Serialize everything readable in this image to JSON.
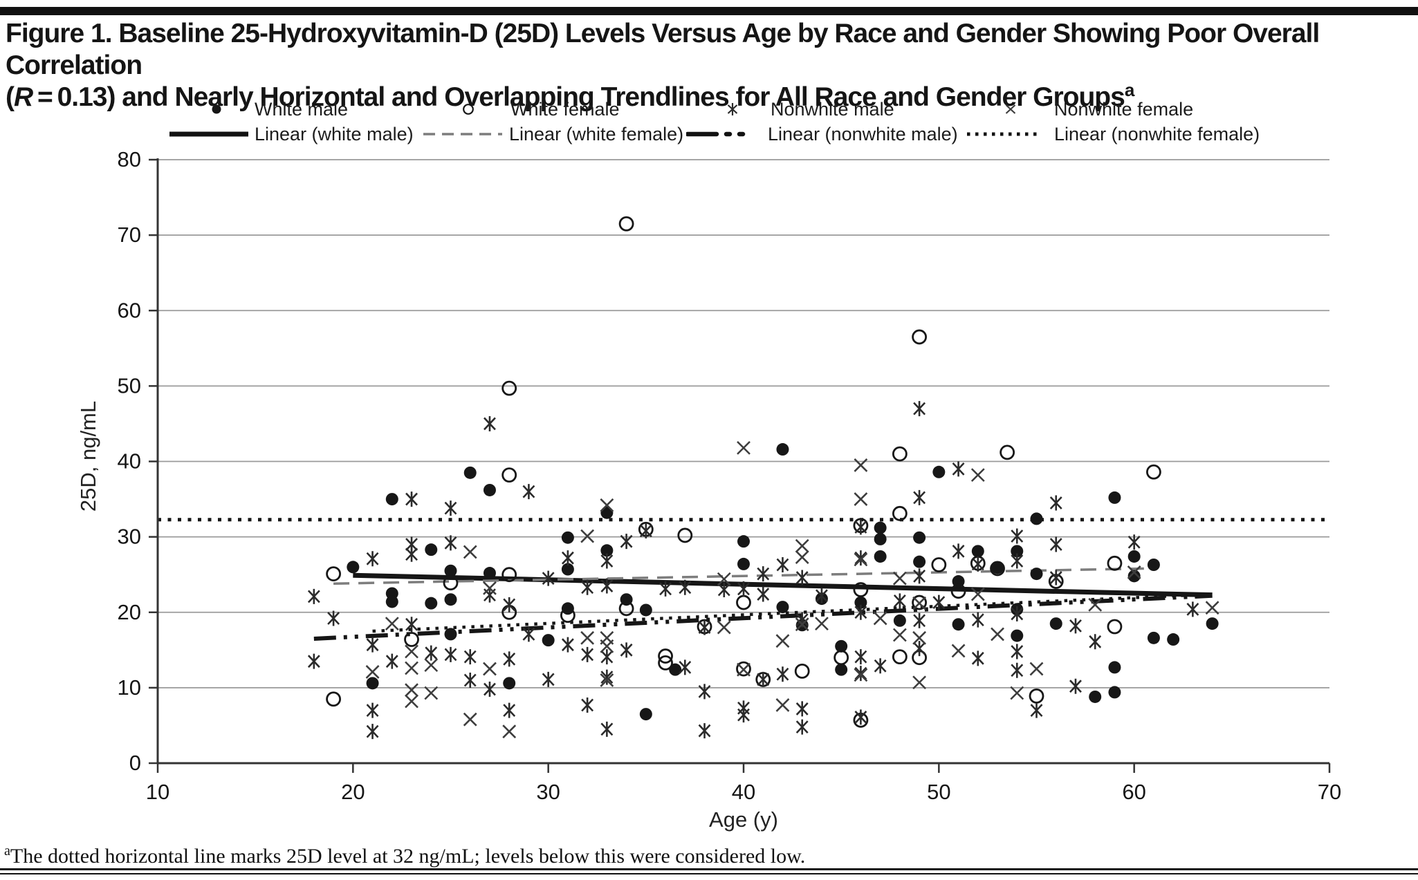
{
  "figure": {
    "title_line1": "Figure 1. Baseline 25-Hydroxyvitamin-D (25D) Levels Versus Age by Race and Gender Showing Poor Overall Correlation",
    "title_line2_pre": "(",
    "title_line2_r": "R",
    "title_line2_rest": " = 0.13) and Nearly Horizontal and Overlapping Trendlines for All Race and Gender Groups",
    "title_superscript": "a",
    "footnote_superscript": "a",
    "footnote_text": "The dotted horizontal line marks 25D level at 32 ng/mL; levels below this were considered low."
  },
  "legend": {
    "row1": [
      {
        "label": "White male"
      },
      {
        "label": "White female"
      },
      {
        "label": "Nonwhite male"
      },
      {
        "label": "Nonwhite female"
      }
    ],
    "row2": [
      {
        "label": "Linear (white male)"
      },
      {
        "label": "Linear (white female)"
      },
      {
        "label": "Linear (nonwhite male)"
      },
      {
        "label": "Linear (nonwhite female)"
      }
    ]
  },
  "colors": {
    "ink": "#161616",
    "grid": "#9a9a9a",
    "dashed_trend": "#7d7d7d",
    "x_marker": "#3d3d3d"
  },
  "chart_data": {
    "type": "scatter",
    "title": "Baseline 25D levels versus age by race and gender",
    "xlabel": "Age (y)",
    "ylabel": "25D, ng/mL",
    "xlim": [
      10,
      70
    ],
    "ylim": [
      0,
      80
    ],
    "xticks": [
      10,
      20,
      30,
      40,
      50,
      60,
      70
    ],
    "yticks": [
      0,
      10,
      20,
      30,
      40,
      50,
      60,
      70,
      80
    ],
    "grid": "horizontal",
    "legend_position": "top",
    "correlation_R": 0.13,
    "reference_line": {
      "y": 32,
      "style": "dotted",
      "meaning": "25D level 32 ng/mL; levels below considered low"
    },
    "series": [
      {
        "name": "White male",
        "marker": "filled-circle",
        "points": [
          [
            20,
            26
          ],
          [
            21,
            10.6
          ],
          [
            22,
            35
          ],
          [
            22,
            22.5
          ],
          [
            22,
            21.4
          ],
          [
            24,
            28.3
          ],
          [
            24,
            21.2
          ],
          [
            25,
            25.5
          ],
          [
            25,
            21.7
          ],
          [
            25,
            17.1
          ],
          [
            26,
            38.5
          ],
          [
            27,
            36.2
          ],
          [
            27,
            25.2
          ],
          [
            28,
            10.6
          ],
          [
            30,
            16.3
          ],
          [
            31,
            29.9
          ],
          [
            31,
            25.7
          ],
          [
            31,
            20.5
          ],
          [
            33,
            33.2
          ],
          [
            33,
            28.2
          ],
          [
            34,
            21.7
          ],
          [
            35,
            20.3
          ],
          [
            35,
            6.5
          ],
          [
            36.5,
            12.4
          ],
          [
            40,
            29.4
          ],
          [
            40,
            26.4
          ],
          [
            42,
            41.6
          ],
          [
            42,
            20.7
          ],
          [
            43,
            18.3
          ],
          [
            44,
            21.8
          ],
          [
            45,
            15.5
          ],
          [
            45,
            12.4
          ],
          [
            46,
            21.3
          ],
          [
            47,
            31.2
          ],
          [
            47,
            29.7
          ],
          [
            47,
            27.4
          ],
          [
            48,
            18.9
          ],
          [
            49,
            29.9
          ],
          [
            49,
            26.7
          ],
          [
            50,
            38.6
          ],
          [
            51,
            24.1
          ],
          [
            51,
            18.4
          ],
          [
            52,
            28.1
          ],
          [
            53,
            25.9
          ],
          [
            54,
            28.1
          ],
          [
            54,
            20.4
          ],
          [
            54,
            16.9
          ],
          [
            55,
            32.4
          ],
          [
            55,
            25.1
          ],
          [
            56,
            18.5
          ],
          [
            58,
            8.8
          ],
          [
            59,
            35.2
          ],
          [
            59,
            12.7
          ],
          [
            59,
            9.4
          ],
          [
            60,
            27.4
          ],
          [
            60,
            24.8
          ],
          [
            61,
            26.3
          ],
          [
            61,
            16.6
          ],
          [
            62,
            16.4
          ],
          [
            64,
            18.5
          ]
        ]
      },
      {
        "name": "White female",
        "marker": "open-circle",
        "points": [
          [
            19,
            25.1
          ],
          [
            19,
            8.5
          ],
          [
            23,
            16.4
          ],
          [
            25,
            23.9
          ],
          [
            28,
            49.7
          ],
          [
            28,
            38.2
          ],
          [
            28,
            25
          ],
          [
            28,
            20
          ],
          [
            31,
            19.6
          ],
          [
            34,
            71.5
          ],
          [
            34,
            20.5
          ],
          [
            35,
            31
          ],
          [
            36,
            14.2
          ],
          [
            36,
            13.3
          ],
          [
            37,
            30.2
          ],
          [
            38,
            18.1
          ],
          [
            40,
            21.3
          ],
          [
            40,
            12.5
          ],
          [
            41,
            11.1
          ],
          [
            43,
            12.2
          ],
          [
            45,
            14
          ],
          [
            46,
            31.5
          ],
          [
            46,
            23
          ],
          [
            46,
            5.7
          ],
          [
            48,
            41
          ],
          [
            48,
            33.1
          ],
          [
            48,
            14.1
          ],
          [
            49,
            56.5
          ],
          [
            49,
            21.3
          ],
          [
            49,
            14
          ],
          [
            50,
            26.3
          ],
          [
            51,
            22.8
          ],
          [
            52,
            26.5
          ],
          [
            53.5,
            41.2
          ],
          [
            53,
            25.8
          ],
          [
            55,
            8.9
          ],
          [
            56,
            24.1
          ],
          [
            59,
            26.5
          ],
          [
            59,
            18.1
          ],
          [
            61,
            38.6
          ]
        ]
      },
      {
        "name": "Nonwhite male",
        "marker": "asterisk",
        "points": [
          [
            18,
            22.1
          ],
          [
            18,
            13.5
          ],
          [
            19,
            19.2
          ],
          [
            21,
            27.1
          ],
          [
            21,
            15.7
          ],
          [
            21,
            7
          ],
          [
            21,
            4.2
          ],
          [
            22,
            13.5
          ],
          [
            23,
            35
          ],
          [
            23,
            29
          ],
          [
            23,
            27.7
          ],
          [
            23,
            18.4
          ],
          [
            24,
            14.6
          ],
          [
            25,
            33.8
          ],
          [
            25,
            29.2
          ],
          [
            25,
            14.4
          ],
          [
            26,
            14.1
          ],
          [
            26,
            11
          ],
          [
            27,
            45
          ],
          [
            27,
            22.3
          ],
          [
            27,
            9.8
          ],
          [
            28,
            21
          ],
          [
            28,
            13.8
          ],
          [
            28,
            7
          ],
          [
            29,
            36
          ],
          [
            29,
            17.1
          ],
          [
            30,
            24.5
          ],
          [
            30,
            11.1
          ],
          [
            31,
            27.2
          ],
          [
            31,
            15.7
          ],
          [
            32,
            23.3
          ],
          [
            32,
            14.4
          ],
          [
            32,
            7.7
          ],
          [
            33,
            26.8
          ],
          [
            33,
            23.5
          ],
          [
            33,
            14.1
          ],
          [
            33,
            11.4
          ],
          [
            33,
            4.5
          ],
          [
            34,
            29.4
          ],
          [
            34,
            15
          ],
          [
            35,
            30.8
          ],
          [
            36,
            23.1
          ],
          [
            37,
            23.3
          ],
          [
            37,
            12.7
          ],
          [
            38,
            18
          ],
          [
            38,
            9.5
          ],
          [
            38,
            4.3
          ],
          [
            39,
            23
          ],
          [
            40,
            23.1
          ],
          [
            40,
            7.3
          ],
          [
            40,
            6.4
          ],
          [
            41,
            25.1
          ],
          [
            41,
            22.4
          ],
          [
            41,
            11.1
          ],
          [
            42,
            26.3
          ],
          [
            42,
            11.8
          ],
          [
            43,
            24.6
          ],
          [
            43,
            19
          ],
          [
            43,
            7.2
          ],
          [
            43,
            4.8
          ],
          [
            44,
            22.2
          ],
          [
            46,
            31.3
          ],
          [
            46,
            27.2
          ],
          [
            46,
            20
          ],
          [
            46,
            14.1
          ],
          [
            46,
            11.9
          ],
          [
            46,
            6.1
          ],
          [
            47,
            12.9
          ],
          [
            48,
            21.5
          ],
          [
            49,
            47
          ],
          [
            49,
            35.2
          ],
          [
            49,
            24.8
          ],
          [
            49,
            18.9
          ],
          [
            49,
            15.2
          ],
          [
            50,
            21.3
          ],
          [
            51,
            39
          ],
          [
            51,
            28.1
          ],
          [
            52,
            26.4
          ],
          [
            52,
            19
          ],
          [
            52,
            13.9
          ],
          [
            54,
            30.1
          ],
          [
            54,
            26.8
          ],
          [
            54,
            19.8
          ],
          [
            54,
            14.8
          ],
          [
            54,
            12.3
          ],
          [
            55,
            7
          ],
          [
            56,
            34.5
          ],
          [
            56,
            29
          ],
          [
            56,
            24.6
          ],
          [
            57,
            18.2
          ],
          [
            57,
            10.2
          ],
          [
            58,
            16.1
          ],
          [
            60,
            29.3
          ],
          [
            63,
            20.4
          ]
        ]
      },
      {
        "name": "Nonwhite female",
        "marker": "x",
        "points": [
          [
            21,
            12.1
          ],
          [
            22,
            18.5
          ],
          [
            23,
            14.8
          ],
          [
            23,
            12.6
          ],
          [
            23,
            9.7
          ],
          [
            23,
            8.2
          ],
          [
            24,
            13
          ],
          [
            24,
            9.3
          ],
          [
            26,
            28
          ],
          [
            26,
            5.8
          ],
          [
            27,
            23.2
          ],
          [
            27,
            12.5
          ],
          [
            28,
            4.2
          ],
          [
            32,
            30.1
          ],
          [
            32,
            16.6
          ],
          [
            33,
            34.2
          ],
          [
            33,
            16.6
          ],
          [
            33,
            15.5
          ],
          [
            33,
            11
          ],
          [
            39,
            24.4
          ],
          [
            39,
            18
          ],
          [
            40,
            41.8
          ],
          [
            40,
            12.4
          ],
          [
            42,
            16.2
          ],
          [
            42,
            7.7
          ],
          [
            43,
            28.8
          ],
          [
            43,
            27.3
          ],
          [
            43,
            18.4
          ],
          [
            44,
            18.5
          ],
          [
            46,
            39.5
          ],
          [
            46,
            35
          ],
          [
            46,
            27
          ],
          [
            46,
            11.7
          ],
          [
            47,
            19.2
          ],
          [
            48,
            24.5
          ],
          [
            48,
            17
          ],
          [
            49,
            21.2
          ],
          [
            49,
            16.6
          ],
          [
            49,
            10.7
          ],
          [
            51,
            14.9
          ],
          [
            52,
            38.2
          ],
          [
            52,
            22.4
          ],
          [
            53,
            17.1
          ],
          [
            54,
            9.3
          ],
          [
            55,
            12.5
          ],
          [
            58,
            21
          ],
          [
            60,
            25.3
          ],
          [
            64,
            20.6
          ]
        ]
      }
    ],
    "trendlines": [
      {
        "name": "Linear (white male)",
        "style": "solid",
        "from": [
          20,
          24.9
        ],
        "to": [
          64,
          22.3
        ]
      },
      {
        "name": "Linear (white female)",
        "style": "dashed",
        "from": [
          19,
          23.8
        ],
        "to": [
          60.5,
          25.8
        ]
      },
      {
        "name": "Linear (nonwhite male)",
        "style": "dash-dot-dot",
        "from": [
          18,
          16.5
        ],
        "to": [
          64,
          22.2
        ]
      },
      {
        "name": "Linear (nonwhite female)",
        "style": "dotted",
        "from": [
          21,
          17.5
        ],
        "to": [
          64,
          22.4
        ]
      }
    ]
  }
}
